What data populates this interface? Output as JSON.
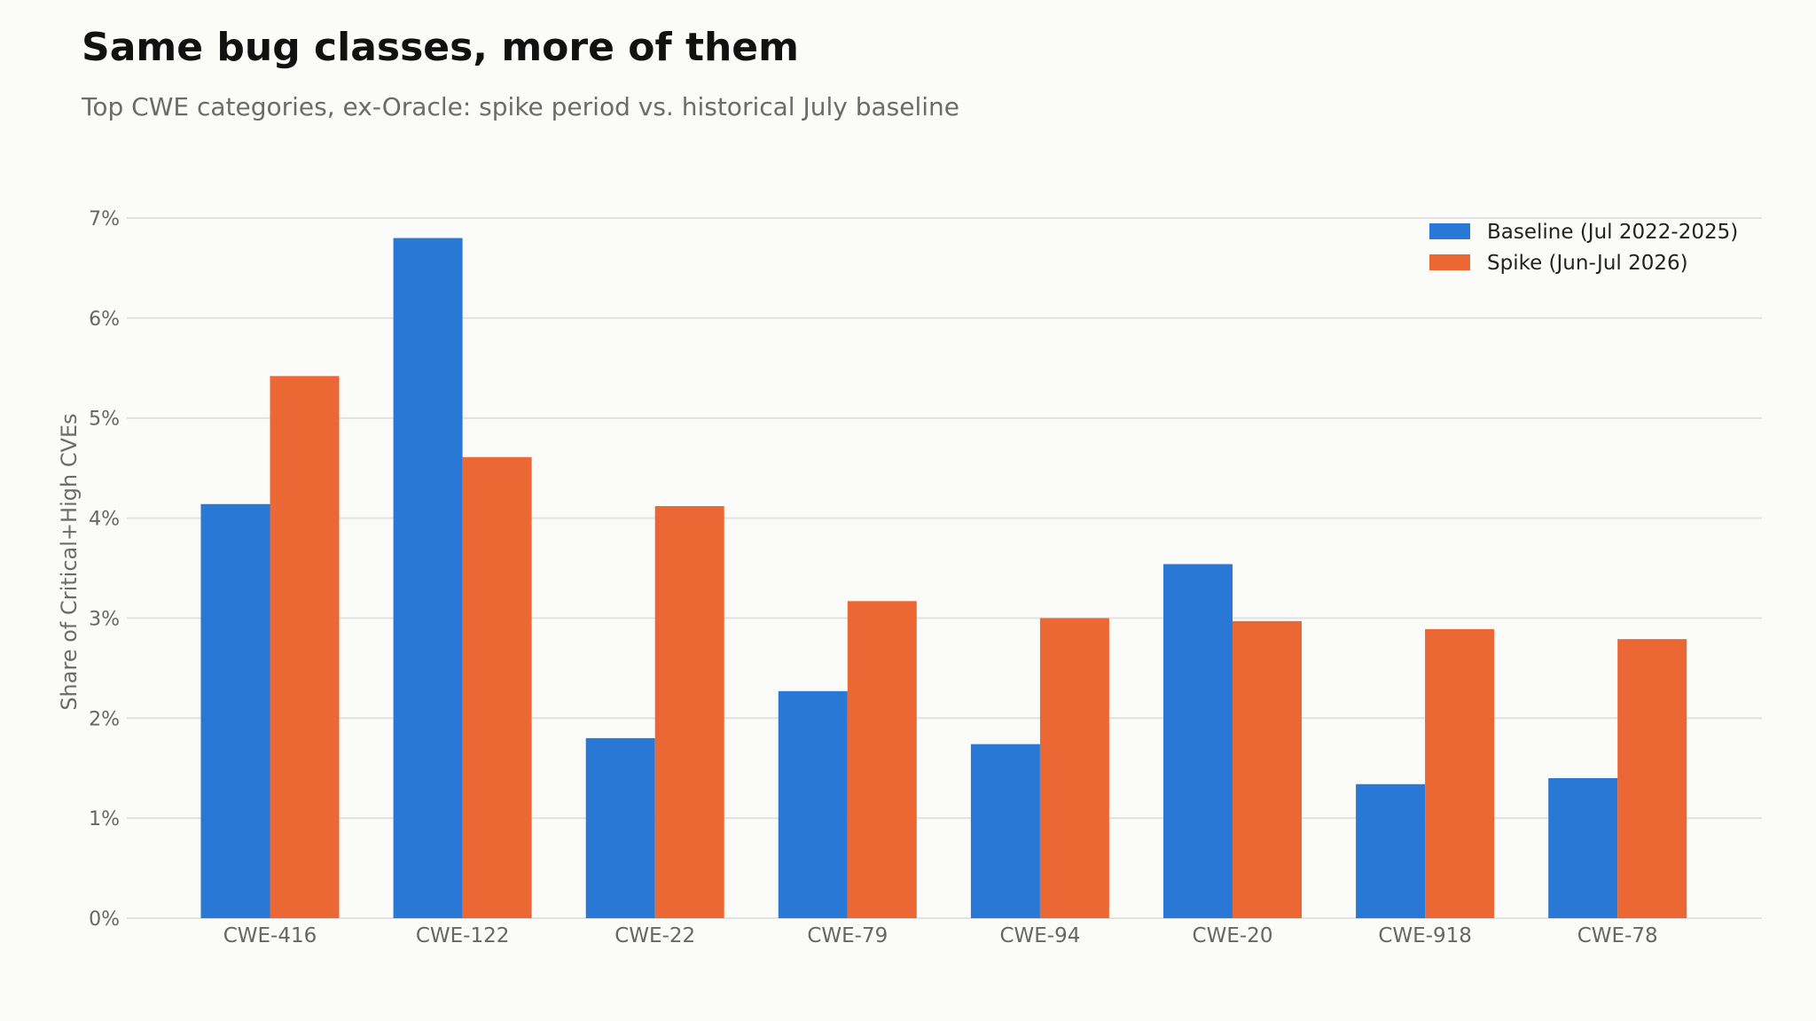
{
  "chart_data": {
    "type": "bar",
    "title": "Same bug classes, more of them",
    "subtitle": "Top CWE categories, ex-Oracle: spike period vs. historical July baseline",
    "xlabel": "",
    "ylabel": "Share of Critical+High CVEs",
    "categories": [
      "CWE-416",
      "CWE-122",
      "CWE-22",
      "CWE-79",
      "CWE-94",
      "CWE-20",
      "CWE-918",
      "CWE-78"
    ],
    "series": [
      {
        "name": "Baseline (Jul 2022-2025)",
        "color": "#2a78d5",
        "values": [
          4.14,
          6.8,
          1.8,
          2.27,
          1.74,
          3.54,
          1.34,
          1.4
        ]
      },
      {
        "name": "Spike (Jun-Jul 2026)",
        "color": "#eb6835",
        "values": [
          5.42,
          4.61,
          4.12,
          3.17,
          3.0,
          2.97,
          2.89,
          2.79
        ]
      }
    ],
    "ylim": [
      0,
      7
    ],
    "yticks": [
      "0%",
      "1%",
      "2%",
      "3%",
      "4%",
      "5%",
      "6%",
      "7%"
    ],
    "grid": true,
    "legend_position": "top-right"
  }
}
